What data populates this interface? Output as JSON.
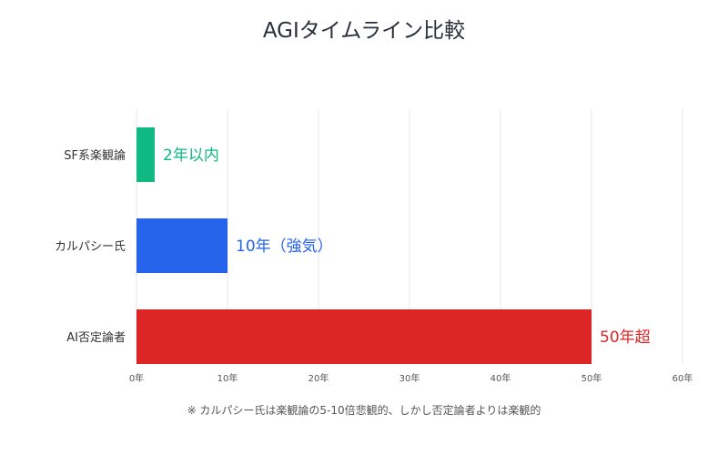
{
  "chart_data": {
    "type": "bar",
    "orientation": "horizontal",
    "title": "AGIタイムライン比較",
    "categories": [
      "SF系楽観論",
      "カルパシー氏",
      "AI否定論者"
    ],
    "values": [
      2,
      10,
      50
    ],
    "data_labels": [
      "2年以内",
      "10年（強気）",
      "50年超"
    ],
    "colors": [
      "#10b981",
      "#2563eb",
      "#dc2626"
    ],
    "xlim": [
      0,
      60
    ],
    "xticks": [
      0,
      10,
      20,
      30,
      40,
      50,
      60
    ],
    "xtick_labels": [
      "0年",
      "10年",
      "20年",
      "30年",
      "40年",
      "50年",
      "60年"
    ],
    "grid": "vertical",
    "xlabel": "",
    "ylabel": "",
    "footnote": "※ カルパシー氏は楽観論の5-10倍悲観的、しかし否定論者よりは楽観的"
  }
}
